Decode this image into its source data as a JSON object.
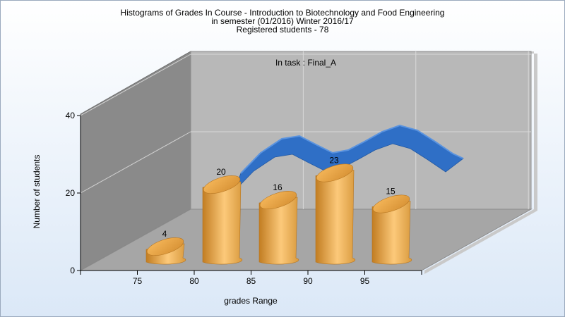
{
  "chart_data": {
    "type": "bar",
    "title": [
      "Histograms of Grades  In Course - Introduction to Biotechnology and Food Engineering",
      "in semester  (01/2016) Winter 2016/17",
      "Registered students - 78"
    ],
    "subtitle": "In task : Final_A",
    "xlabel": "grades Range",
    "ylabel": "Number of students",
    "categories": [
      "75",
      "80",
      "85",
      "90",
      "95"
    ],
    "values": [
      4,
      20,
      16,
      23,
      15
    ],
    "ylim": [
      0,
      40
    ],
    "yticks": [
      "0",
      "20",
      "40"
    ],
    "grid": true,
    "colors": {
      "bar": "#e8a646",
      "curve": "#2f6fc6",
      "back_wall": "#b8b8b8",
      "side_wall": "#8a8a8a",
      "floor": "#a6a6a6"
    }
  }
}
